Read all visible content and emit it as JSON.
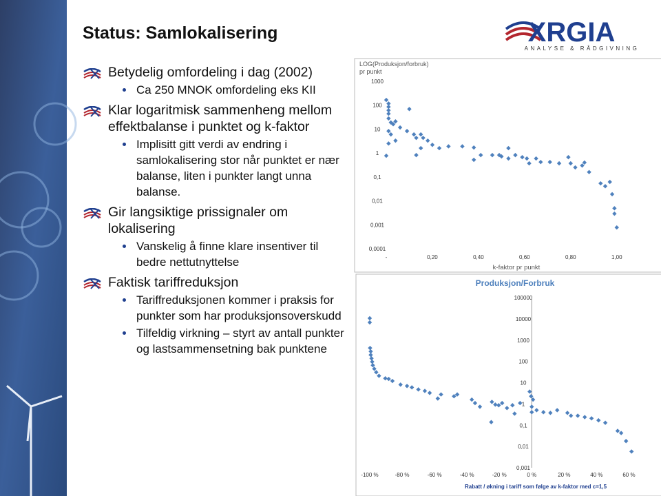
{
  "header": {
    "title": "Status: Samlokalisering"
  },
  "logo": {
    "name": "XRGIA",
    "tagline": "ANALYSE & RÅDGIVNING"
  },
  "bullets": [
    {
      "text": "Betydelig omfordeling i dag (2002)",
      "sub": [
        "Ca 250 MNOK omfordeling eks KII"
      ]
    },
    {
      "text": "Klar logaritmisk sammenheng mellom effektbalanse i punktet og k-faktor",
      "sub": [
        "Implisitt gitt verdi av endring i samlokalisering stor når punktet er nær balanse, liten i punkter langt unna balanse."
      ]
    },
    {
      "text": "Gir langsiktige prissignaler om lokalisering",
      "sub": [
        "Vanskelig å finne klare insentiver til bedre nettutnyttelse"
      ]
    },
    {
      "text": "Faktisk tariffreduksjon",
      "sub": [
        "Tariffreduksjonen kommer i praksis for punkter som har produksjonsoverskudd",
        "Tilfeldig virkning – styrt av antall punkter og lastsammensetning bak punktene"
      ]
    }
  ],
  "chart_data": [
    {
      "type": "scatter",
      "ylabel": [
        "LOG(Produksjon/forbruk)",
        "pr punkt"
      ],
      "xlabel": "k-faktor pr punkt",
      "log_y": true,
      "color": "#4f81bd",
      "xlim": [
        0,
        1.18
      ],
      "xticks": [
        {
          "value": 0,
          "label": "-"
        },
        {
          "value": 0.2,
          "label": "0,20"
        },
        {
          "value": 0.4,
          "label": "0,40"
        },
        {
          "value": 0.6,
          "label": "0,60"
        },
        {
          "value": 0.8,
          "label": "0,80"
        },
        {
          "value": 1.0,
          "label": "1,00"
        }
      ],
      "ylim": [
        0.0001,
        1000
      ],
      "yticks": [
        {
          "value": 0.0001,
          "label": "0,0001"
        },
        {
          "value": 0.001,
          "label": "0,001"
        },
        {
          "value": 0.01,
          "label": "0,01"
        },
        {
          "value": 0.1,
          "label": "0,1"
        },
        1,
        10,
        100,
        1000
      ],
      "x": [
        0.0,
        0.01,
        0.01,
        0.01,
        0.01,
        0.01,
        0.02,
        0.03,
        0.04,
        0.01,
        0.02,
        0.06,
        0.09,
        0.1,
        0.12,
        0.13,
        0.15,
        0.16,
        0.18,
        0.2,
        0.23,
        0.13,
        0.15,
        0.27,
        0.33,
        0.38,
        0.38,
        0.41,
        0.46,
        0.49,
        0.5,
        0.53,
        0.53,
        0.56,
        0.59,
        0.61,
        0.62,
        0.65,
        0.67,
        0.71,
        0.75,
        0.79,
        0.8,
        0.82,
        0.85,
        0.86,
        0.88,
        0.93,
        0.95,
        0.97,
        0.98,
        0.99,
        0.99,
        1.0,
        0.0,
        0.01,
        0.04
      ],
      "values": [
        166,
        117,
        85,
        61,
        44,
        28,
        19,
        16,
        21,
        8.3,
        6,
        11.7,
        8.3,
        69,
        6,
        4.3,
        6,
        4.3,
        3.3,
        2.2,
        1.6,
        0.82,
        1.6,
        1.9,
        1.9,
        1.7,
        0.52,
        0.82,
        0.82,
        0.82,
        0.72,
        1.6,
        0.59,
        0.82,
        0.67,
        0.59,
        0.37,
        0.59,
        0.42,
        0.42,
        0.37,
        0.67,
        0.37,
        0.25,
        0.3,
        0.4,
        0.16,
        0.054,
        0.041,
        0.062,
        0.019,
        0.0049,
        0.0029,
        0.00077,
        0.77,
        2.5,
        3.3
      ]
    },
    {
      "type": "scatter",
      "title": "Produksjon/Forbruk",
      "xlabel": "Rabatt / økning i tariff som følge av k-faktor med c=1,5",
      "log_y": true,
      "color": "#4f81bd",
      "xlim": [
        -100,
        70
      ],
      "xticks": [
        {
          "value": -100,
          "label": "-100 %"
        },
        {
          "value": -80,
          "label": "-80 %"
        },
        {
          "value": -60,
          "label": "-60 %"
        },
        {
          "value": -40,
          "label": "-40 %"
        },
        {
          "value": -20,
          "label": "-20 %"
        },
        {
          "value": 0,
          "label": "0 %"
        },
        {
          "value": 20,
          "label": "20 %"
        },
        {
          "value": 40,
          "label": "40 %"
        },
        {
          "value": 60,
          "label": "60 %"
        }
      ],
      "ylim": [
        0.001,
        100000
      ],
      "yticks": [
        {
          "value": 0.001,
          "label": "0,001"
        },
        {
          "value": 0.01,
          "label": "0,01"
        },
        {
          "value": 0.1,
          "label": "0,1"
        },
        1,
        10,
        100,
        1000,
        10000,
        100000
      ],
      "x": [
        -100,
        -100,
        -99.8,
        -99.4,
        -99.4,
        -98.9,
        -98.5,
        -98.1,
        -97.2,
        -96,
        -94.3,
        -90.4,
        -88.3,
        -86,
        -81,
        -77,
        -74,
        -70,
        -66,
        -63,
        -58,
        -56,
        -48,
        -46,
        -37,
        -35,
        -32,
        -25,
        -24.6,
        -22.5,
        -20.4,
        -18.3,
        -15.3,
        -11.9,
        -10.6,
        -7.2,
        -1.3,
        -0.4,
        0.8,
        0,
        0,
        3,
        7.2,
        11.5,
        15.7,
        22,
        24.2,
        28.4,
        32.7,
        36.9,
        41.2,
        45.4,
        53,
        55.2,
        58.2,
        61.6
      ],
      "values": [
        10700,
        6800,
        427,
        294,
        202,
        139,
        96,
        66,
        45,
        31,
        21,
        16,
        15,
        12,
        8.1,
        7,
        6,
        4.8,
        4.1,
        3.3,
        1.8,
        2.8,
        2.3,
        2.8,
        1.6,
        1.1,
        0.74,
        0.14,
        1.25,
        0.93,
        0.87,
        1.1,
        0.64,
        0.87,
        0.35,
        1.1,
        3.8,
        2.3,
        1.6,
        0.74,
        0.41,
        0.51,
        0.41,
        0.38,
        0.51,
        0.38,
        0.28,
        0.28,
        0.24,
        0.21,
        0.17,
        0.13,
        0.054,
        0.043,
        0.018,
        0.0058
      ]
    }
  ]
}
